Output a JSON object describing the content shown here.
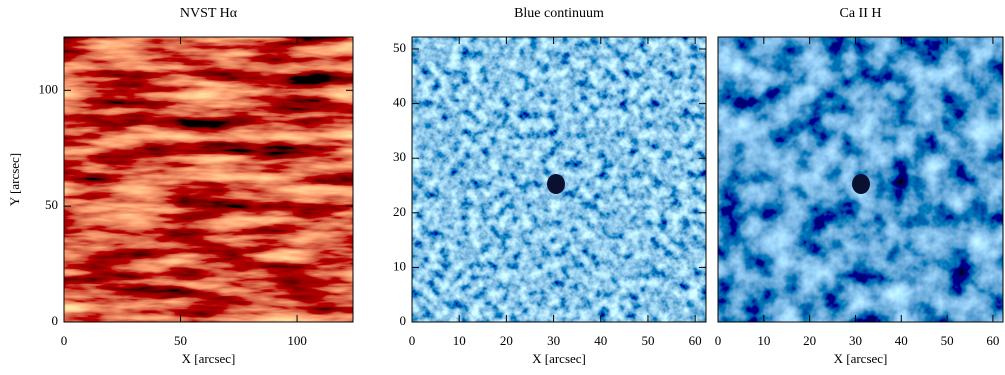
{
  "chart_data": [
    {
      "type": "image",
      "title": "NVST Hα",
      "xlabel": "X  [arcsec]",
      "ylabel": "Y  [arcsec]",
      "xlim": [
        0,
        124
      ],
      "ylim": [
        0,
        123
      ],
      "xticks": [
        0,
        50,
        100
      ],
      "yticks": [
        0,
        50,
        100
      ]
    },
    {
      "type": "image",
      "title": "Blue continuum",
      "xlabel": "X  [arcsec]",
      "xlim": [
        0,
        62.3
      ],
      "ylim": [
        0,
        52.2
      ],
      "xticks": [
        0,
        10,
        20,
        30,
        40,
        50,
        60
      ],
      "yticks": [
        0,
        10,
        20,
        30,
        40,
        50
      ]
    },
    {
      "type": "image",
      "title": "Ca II H",
      "xlabel": "X  [arcsec]",
      "xlim": [
        0,
        62.2
      ],
      "ylim": [
        0,
        52.2
      ],
      "xticks": [
        0,
        10,
        20,
        30,
        40,
        50,
        60
      ]
    }
  ]
}
